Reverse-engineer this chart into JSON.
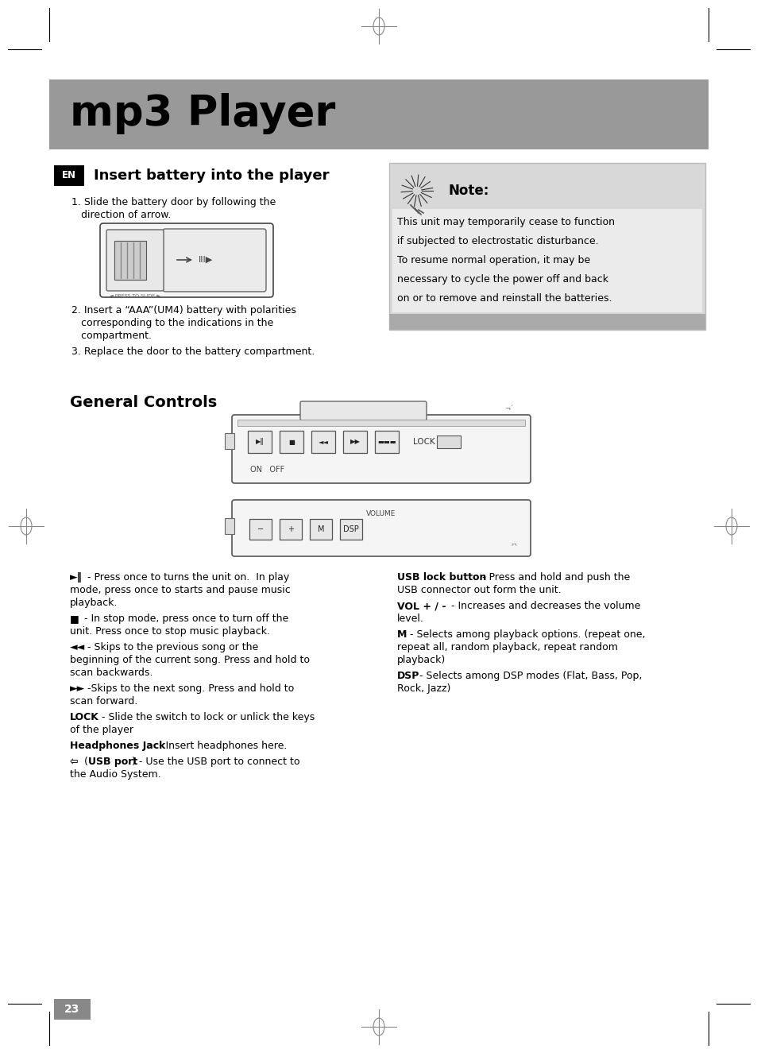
{
  "title": "mp3 Player",
  "title_bg_color": "#999999",
  "title_text_color": "#000000",
  "page_bg_color": "#ffffff",
  "section1_title": "Insert battery into the player",
  "section1_en_bg": "#000000",
  "section1_en_text": "EN",
  "note_bg_color": "#d0d0d0",
  "note_inner_bg": "#e0e0e0",
  "note_title": "Note:",
  "note_text_lines": [
    "This unit may temporarily cease to function",
    "if subjected to electrostatic disturbance.",
    "To resume normal operation, it may be",
    "necessary to cycle the power off and back",
    "on or to remove and reinstall the batteries."
  ],
  "battery_step1a": "1. Slide the battery door by following the",
  "battery_step1b": "   direction of arrow.",
  "battery_step2a": "2. Insert a “AAA”(UM4) battery with polarities",
  "battery_step2b": "   corresponding to the indications in the",
  "battery_step2c": "   compartment.",
  "battery_step3": "3. Replace the door to the battery compartment.",
  "section2_title": "General Controls",
  "page_number": "23",
  "border_color": "#000000",
  "crosshair_color": "#888888",
  "gray_bg": "#999999"
}
